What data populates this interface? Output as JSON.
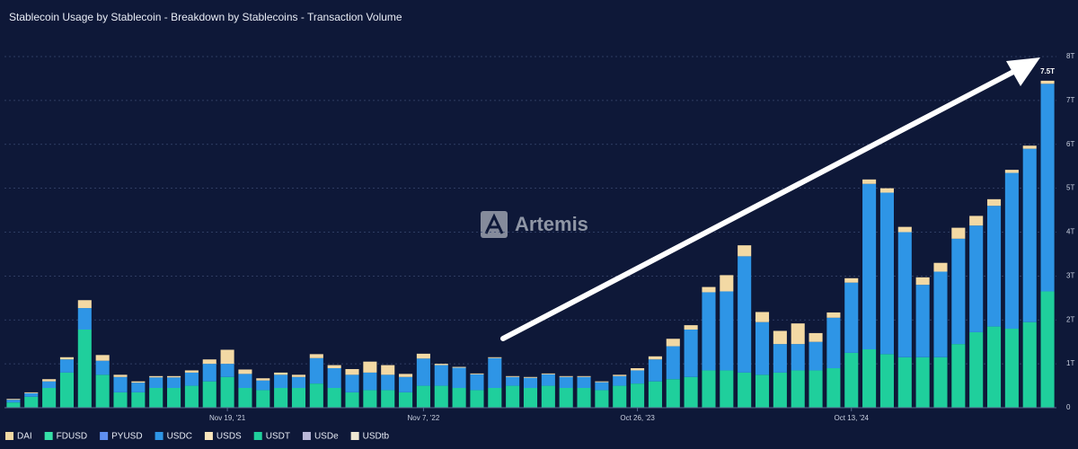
{
  "chart_data": {
    "type": "stacked_bar",
    "title": "Stablecoin Usage by Stablecoin - Breakdown by Stablecoins - Transaction Volume",
    "watermark": "Artemis",
    "annotation": "7.5T",
    "categories": [
      null,
      null,
      null,
      null,
      null,
      null,
      null,
      null,
      null,
      null,
      null,
      null,
      "Nov 19, '21",
      null,
      null,
      null,
      null,
      null,
      null,
      null,
      null,
      null,
      null,
      "Nov 7, '22",
      null,
      null,
      null,
      null,
      null,
      null,
      null,
      null,
      null,
      null,
      null,
      "Oct 26, '23",
      null,
      null,
      null,
      null,
      null,
      null,
      null,
      null,
      null,
      null,
      null,
      "Oct 13, '24",
      null,
      null,
      null,
      null,
      null,
      null,
      null,
      null,
      null,
      null,
      null
    ],
    "ylim": [
      0,
      8
    ],
    "yticks": [
      0,
      {
        "value": 1,
        "label": "1T"
      },
      {
        "value": 2,
        "label": "2T"
      },
      {
        "value": 3,
        "label": "3T"
      },
      {
        "value": 4,
        "label": "4T"
      },
      {
        "value": 5,
        "label": "5T"
      },
      {
        "value": 6,
        "label": "6T"
      },
      {
        "value": 7,
        "label": "7T"
      },
      {
        "value": 8,
        "label": "8T"
      }
    ],
    "grid": true,
    "legend": "bottom-left",
    "series": [
      {
        "name": "DAI",
        "color": "#f3d9a4",
        "values": [
          0.02,
          0.02,
          0.05,
          0.05,
          0.18,
          0.13,
          0.05,
          0.03,
          0.03,
          0.03,
          0.05,
          0.1,
          0.32,
          0.1,
          0.05,
          0.05,
          0.05,
          0.09,
          0.07,
          0.13,
          0.25,
          0.22,
          0.07,
          0.11,
          0.03,
          0.02,
          0.02,
          0.02,
          0.02,
          0.02,
          0.02,
          0.02,
          0.02,
          0.02,
          0.03,
          0.05,
          0.07,
          0.17,
          0.1,
          0.12,
          0.37,
          0.25,
          0.23,
          0.3,
          0.47,
          0.2,
          0.12,
          0.1,
          0.1,
          0.1,
          0.12,
          0.17,
          0.2,
          0.25,
          0.22,
          0.15,
          0.07,
          0.07,
          0.07
        ]
      },
      {
        "name": "FDUSD",
        "color": "#35e0a8",
        "values": [
          0,
          0,
          0,
          0,
          0,
          0,
          0,
          0,
          0,
          0,
          0,
          0,
          0,
          0,
          0,
          0,
          0,
          0,
          0,
          0,
          0,
          0,
          0,
          0,
          0,
          0,
          0,
          0,
          0,
          0,
          0,
          0,
          0,
          0,
          0,
          0,
          0,
          0,
          0,
          0,
          0,
          0,
          0,
          0,
          0,
          0,
          0,
          0,
          0,
          0,
          0,
          0,
          0,
          0,
          0,
          0,
          0,
          0,
          0
        ]
      },
      {
        "name": "PYUSD",
        "color": "#5f8ff0",
        "values": [
          0,
          0,
          0,
          0,
          0,
          0,
          0,
          0,
          0,
          0,
          0,
          0,
          0,
          0,
          0,
          0,
          0,
          0,
          0,
          0,
          0,
          0,
          0,
          0,
          0,
          0,
          0,
          0,
          0,
          0,
          0,
          0,
          0,
          0,
          0,
          0,
          0,
          0,
          0,
          0,
          0,
          0,
          0,
          0,
          0,
          0,
          0,
          0,
          0,
          0,
          0,
          0,
          0,
          0,
          0,
          0,
          0,
          0,
          0
        ]
      },
      {
        "name": "USDC",
        "color": "#2e95e6",
        "values": [
          0.06,
          0.08,
          0.15,
          0.3,
          0.49,
          0.32,
          0.35,
          0.22,
          0.24,
          0.24,
          0.3,
          0.4,
          0.3,
          0.32,
          0.22,
          0.3,
          0.25,
          0.58,
          0.45,
          0.4,
          0.4,
          0.35,
          0.35,
          0.62,
          0.47,
          0.46,
          0.36,
          0.68,
          0.2,
          0.23,
          0.26,
          0.25,
          0.25,
          0.18,
          0.22,
          0.3,
          0.5,
          0.75,
          1.08,
          1.78,
          1.8,
          2.65,
          1.2,
          0.65,
          0.6,
          0.65,
          1.15,
          1.6,
          3.77,
          3.68,
          2.85,
          1.65,
          1.95,
          2.4,
          2.43,
          2.75,
          3.55,
          3.95,
          4.73
        ]
      },
      {
        "name": "USDS",
        "color": "#f9e6bd",
        "values": [
          0,
          0,
          0,
          0,
          0,
          0,
          0,
          0,
          0,
          0,
          0,
          0,
          0,
          0,
          0,
          0,
          0,
          0,
          0,
          0,
          0,
          0,
          0,
          0,
          0,
          0,
          0,
          0,
          0,
          0,
          0,
          0,
          0,
          0,
          0,
          0,
          0,
          0,
          0,
          0,
          0,
          0,
          0,
          0,
          0,
          0,
          0,
          0,
          0,
          0,
          0,
          0,
          0,
          0,
          0,
          0,
          0,
          0,
          0
        ]
      },
      {
        "name": "USDT",
        "color": "#1fcf9c",
        "values": [
          0.12,
          0.25,
          0.45,
          0.8,
          1.78,
          0.75,
          0.35,
          0.35,
          0.45,
          0.45,
          0.5,
          0.6,
          0.7,
          0.45,
          0.4,
          0.45,
          0.45,
          0.55,
          0.45,
          0.35,
          0.4,
          0.4,
          0.35,
          0.5,
          0.5,
          0.45,
          0.4,
          0.45,
          0.5,
          0.45,
          0.5,
          0.45,
          0.45,
          0.4,
          0.5,
          0.55,
          0.6,
          0.65,
          0.7,
          0.85,
          0.85,
          0.8,
          0.75,
          0.8,
          0.85,
          0.85,
          0.9,
          1.25,
          1.33,
          1.22,
          1.15,
          1.15,
          1.15,
          1.45,
          1.72,
          1.85,
          1.8,
          1.95,
          2.65
        ]
      },
      {
        "name": "USDe",
        "color": "#b9b8d8",
        "values": [
          0,
          0,
          0,
          0,
          0,
          0,
          0,
          0,
          0,
          0,
          0,
          0,
          0,
          0,
          0,
          0,
          0,
          0,
          0,
          0,
          0,
          0,
          0,
          0,
          0,
          0,
          0,
          0,
          0,
          0,
          0,
          0,
          0,
          0,
          0,
          0,
          0,
          0,
          0,
          0,
          0,
          0,
          0,
          0,
          0,
          0,
          0,
          0,
          0,
          0,
          0,
          0,
          0,
          0,
          0,
          0,
          0,
          0,
          0
        ]
      },
      {
        "name": "USDtb",
        "color": "#eee7d2",
        "values": [
          0,
          0,
          0,
          0,
          0,
          0,
          0,
          0,
          0,
          0,
          0,
          0,
          0,
          0,
          0,
          0,
          0,
          0,
          0,
          0,
          0,
          0,
          0,
          0,
          0,
          0,
          0,
          0,
          0,
          0,
          0,
          0,
          0,
          0,
          0,
          0,
          0,
          0,
          0,
          0,
          0,
          0,
          0,
          0,
          0,
          0,
          0,
          0,
          0,
          0,
          0,
          0,
          0,
          0,
          0,
          0,
          0,
          0,
          0
        ]
      }
    ]
  }
}
